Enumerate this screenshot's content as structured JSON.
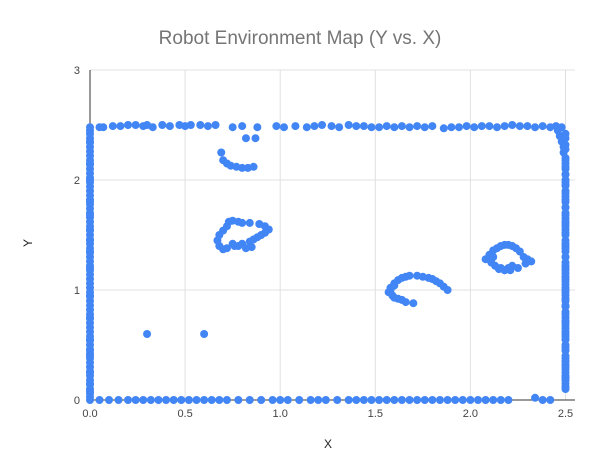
{
  "chart_data": {
    "type": "scatter",
    "title": "Robot Environment Map (Y vs. X)",
    "xlabel": "X",
    "ylabel": "Y",
    "xlim": [
      0,
      2.55
    ],
    "ylim": [
      0,
      3
    ],
    "xticks": [
      0.0,
      0.5,
      1.0,
      1.5,
      2.0,
      2.5
    ],
    "xtick_labels": [
      "0.0",
      "0.5",
      "1.0",
      "1.5",
      "2.0",
      "2.5"
    ],
    "yticks": [
      0,
      1,
      2,
      3
    ],
    "ytick_labels": [
      "0",
      "1",
      "2",
      "3"
    ],
    "grid": true,
    "legend": "none",
    "marker_color": "#4285f4",
    "series": [
      {
        "x": [
          0.0,
          0.0,
          0.0,
          0.0,
          0.0,
          0.0,
          0.0,
          0.0,
          0.0,
          0.0,
          0.0,
          0.0,
          0.0,
          0.0,
          0.0,
          0.0,
          0.0,
          0.0,
          0.0,
          0.0,
          0.0,
          0.0,
          0.0,
          0.0,
          0.0,
          0.0,
          0.0,
          0.0,
          0.0,
          0.0,
          0.0,
          0.0,
          0.0,
          0.0,
          0.0,
          0.0,
          0.0,
          0.0,
          0.0,
          0.0,
          0.0,
          0.0,
          0.0,
          0.0,
          0.0,
          0.0,
          0.0,
          0.0,
          0.0,
          0.0,
          0.0,
          0.0,
          0.0,
          0.0,
          0.0,
          0.0,
          0.0,
          0.0,
          0.0,
          0.0,
          0.0,
          0.0,
          0.0,
          0.0,
          0.0,
          0.0,
          0.0,
          0.0,
          0.0,
          0.0,
          0.0,
          0.0,
          0.0,
          0.0,
          0.0,
          0.0,
          0.0,
          0.0,
          0.0,
          0.0,
          0.0,
          0.05,
          0.07,
          0.12,
          0.16,
          0.2,
          0.24,
          0.28,
          0.3,
          0.33,
          0.38,
          0.42,
          0.47,
          0.5,
          0.53,
          0.58,
          0.62,
          0.66,
          0.75,
          0.8,
          0.88,
          0.98,
          1.02,
          1.08,
          1.14,
          1.18,
          1.22,
          1.27,
          1.31,
          1.36,
          1.4,
          1.44,
          1.48,
          1.52,
          1.56,
          1.6,
          1.64,
          1.68,
          1.72,
          1.76,
          1.8,
          1.86,
          1.9,
          1.94,
          1.98,
          2.02,
          2.06,
          2.1,
          2.14,
          2.18,
          2.22,
          2.26,
          2.3,
          2.34,
          2.38,
          2.42,
          2.45,
          2.48,
          0.05,
          0.1,
          0.15,
          0.2,
          0.24,
          0.28,
          0.32,
          0.36,
          0.4,
          0.44,
          0.48,
          0.52,
          0.56,
          0.6,
          0.64,
          0.68,
          0.72,
          0.78,
          0.84,
          0.9,
          0.96,
          1.0,
          1.04,
          1.1,
          1.16,
          1.2,
          1.24,
          1.3,
          1.36,
          1.4,
          1.44,
          1.48,
          1.52,
          1.56,
          1.6,
          1.64,
          1.68,
          1.72,
          1.76,
          1.8,
          1.84,
          1.88,
          1.92,
          1.96,
          2.0,
          2.04,
          2.08,
          2.12,
          2.16,
          2.2,
          2.34,
          2.38,
          2.42,
          2.46,
          2.47,
          2.48,
          2.49,
          2.49,
          2.5,
          2.5,
          2.5,
          2.5,
          2.5,
          2.5,
          2.5,
          2.5,
          2.5,
          2.5,
          2.5,
          2.5,
          2.5,
          2.5,
          2.5,
          2.5,
          2.5,
          2.5,
          2.5,
          2.5,
          2.5,
          2.5,
          2.5,
          2.5,
          2.5,
          2.5,
          2.5,
          2.5,
          2.5,
          2.5,
          2.5,
          2.5,
          2.5,
          2.5,
          2.5,
          2.5,
          2.5,
          2.5,
          2.5,
          2.5,
          2.5,
          2.5,
          2.5,
          2.5,
          2.5,
          2.5,
          2.5,
          2.5,
          2.5,
          2.5,
          2.5,
          2.5,
          2.5,
          2.5,
          2.5,
          2.5,
          2.5,
          2.5,
          2.5,
          2.5,
          2.5,
          2.5,
          2.5,
          2.5,
          2.5,
          2.5,
          2.5,
          2.5,
          2.5,
          2.5,
          2.5,
          2.5,
          2.5,
          2.5,
          2.5,
          2.5,
          2.5,
          2.5,
          2.5,
          2.5,
          2.5,
          2.5,
          2.5,
          2.5,
          2.5,
          2.5,
          2.5,
          0.69,
          0.7,
          0.72,
          0.74,
          0.77,
          0.8,
          0.83,
          0.86,
          0.82,
          0.87,
          0.73,
          0.75,
          0.78,
          0.8,
          0.84,
          0.89,
          0.92,
          0.94,
          0.92,
          0.9,
          0.88,
          0.86,
          0.84,
          0.8,
          0.76,
          0.72,
          0.7,
          0.68,
          0.67,
          0.68,
          0.7,
          0.72,
          0.75,
          0.78,
          0.82,
          0.85,
          1.57,
          1.58,
          1.6,
          1.62,
          1.64,
          1.66,
          1.68,
          1.72,
          1.75,
          1.78,
          1.8,
          1.82,
          1.84,
          1.86,
          1.88,
          1.59,
          1.6,
          1.62,
          1.64,
          1.66,
          1.7,
          1.58,
          1.6,
          2.08,
          2.1,
          2.12,
          2.14,
          2.16,
          2.18,
          2.2,
          2.22,
          2.24,
          2.26,
          2.28,
          2.3,
          2.32,
          2.22,
          2.2,
          2.18,
          2.16,
          2.13,
          2.11,
          2.1,
          2.12,
          2.15,
          2.18,
          2.21,
          2.25,
          2.29,
          0.3,
          0.6
        ],
        "y": [
          0.0,
          0.03,
          0.06,
          0.1,
          0.14,
          0.18,
          0.22,
          0.26,
          0.3,
          0.34,
          0.38,
          0.42,
          0.46,
          0.5,
          0.54,
          0.58,
          0.62,
          0.66,
          0.7,
          0.74,
          0.78,
          0.82,
          0.86,
          0.9,
          0.94,
          0.98,
          1.02,
          1.06,
          1.1,
          1.14,
          1.18,
          1.22,
          1.26,
          1.3,
          1.34,
          1.38,
          1.42,
          1.46,
          1.5,
          1.54,
          1.58,
          1.62,
          1.66,
          1.7,
          1.74,
          1.78,
          1.82,
          1.86,
          1.9,
          1.94,
          1.98,
          2.02,
          2.06,
          2.1,
          2.14,
          2.18,
          2.22,
          2.26,
          2.3,
          2.34,
          2.38,
          2.42,
          2.45,
          2.48,
          0.08,
          0.15,
          0.4,
          0.55,
          0.75,
          0.95,
          1.2,
          1.35,
          1.55,
          1.68,
          1.8,
          2.0,
          2.15,
          2.35,
          0.25,
          0.45,
          1.45,
          2.48,
          2.48,
          2.49,
          2.49,
          2.5,
          2.5,
          2.49,
          2.5,
          2.48,
          2.5,
          2.49,
          2.5,
          2.49,
          2.5,
          2.5,
          2.49,
          2.5,
          2.48,
          2.49,
          2.48,
          2.49,
          2.48,
          2.49,
          2.48,
          2.49,
          2.5,
          2.49,
          2.48,
          2.5,
          2.49,
          2.49,
          2.48,
          2.48,
          2.49,
          2.48,
          2.49,
          2.48,
          2.49,
          2.48,
          2.49,
          2.47,
          2.48,
          2.48,
          2.49,
          2.48,
          2.49,
          2.49,
          2.48,
          2.49,
          2.5,
          2.49,
          2.49,
          2.48,
          2.49,
          2.48,
          2.49,
          2.48,
          0.0,
          0.0,
          0.0,
          0.0,
          0.0,
          0.0,
          0.0,
          0.0,
          0.0,
          0.0,
          0.0,
          0.0,
          0.0,
          0.0,
          0.0,
          0.0,
          0.0,
          0.0,
          0.0,
          0.0,
          0.0,
          0.0,
          0.0,
          0.0,
          0.0,
          0.0,
          0.0,
          0.0,
          0.0,
          0.0,
          0.0,
          0.0,
          0.0,
          0.0,
          0.0,
          0.0,
          0.0,
          0.0,
          0.0,
          0.0,
          0.0,
          0.0,
          0.0,
          0.0,
          0.0,
          0.0,
          0.0,
          0.0,
          0.0,
          0.0,
          0.02,
          0.0,
          0.0,
          2.45,
          2.4,
          2.35,
          2.3,
          2.25,
          2.2,
          2.15,
          2.1,
          2.05,
          2.0,
          1.95,
          1.9,
          1.85,
          1.8,
          1.75,
          1.7,
          1.65,
          1.6,
          1.55,
          1.5,
          1.45,
          1.4,
          1.35,
          1.3,
          1.25,
          1.2,
          1.15,
          1.1,
          1.05,
          1.0,
          0.95,
          0.9,
          0.85,
          0.8,
          0.75,
          0.7,
          0.65,
          0.6,
          0.55,
          0.5,
          0.45,
          0.4,
          0.35,
          0.3,
          0.25,
          0.2,
          0.15,
          0.1,
          2.42,
          2.28,
          2.12,
          1.98,
          1.82,
          1.68,
          1.52,
          1.38,
          1.22,
          1.08,
          0.92,
          0.78,
          0.62,
          0.48,
          0.32,
          0.18,
          2.38,
          2.18,
          1.88,
          1.62,
          1.42,
          1.18,
          0.98,
          0.72,
          0.55,
          0.38,
          0.22,
          0.12,
          2.05,
          1.75,
          1.3,
          0.85,
          0.45,
          2.32,
          1.95,
          1.58,
          1.12,
          0.68,
          0.28,
          0.2,
          0.35,
          0.58,
          0.86,
          1.02,
          2.25,
          2.18,
          2.15,
          2.13,
          2.12,
          2.11,
          2.11,
          2.12,
          2.38,
          2.38,
          1.62,
          1.63,
          1.62,
          1.61,
          1.61,
          1.6,
          1.58,
          1.55,
          1.52,
          1.5,
          1.48,
          1.46,
          1.44,
          1.42,
          1.4,
          1.38,
          1.37,
          1.4,
          1.45,
          1.5,
          1.54,
          1.58,
          1.42,
          1.4,
          1.38,
          1.39,
          0.98,
          1.02,
          1.06,
          1.09,
          1.11,
          1.12,
          1.13,
          1.13,
          1.12,
          1.11,
          1.1,
          1.08,
          1.06,
          1.03,
          1.0,
          0.95,
          0.93,
          0.92,
          0.91,
          0.89,
          0.88,
          1.0,
          1.04,
          1.28,
          1.32,
          1.36,
          1.38,
          1.4,
          1.41,
          1.41,
          1.4,
          1.38,
          1.35,
          1.3,
          1.28,
          1.26,
          1.22,
          1.2,
          1.18,
          1.2,
          1.22,
          1.25,
          1.28,
          1.3,
          1.19,
          1.18,
          1.18,
          1.2,
          1.24,
          0.6,
          0.6
        ]
      }
    ]
  }
}
